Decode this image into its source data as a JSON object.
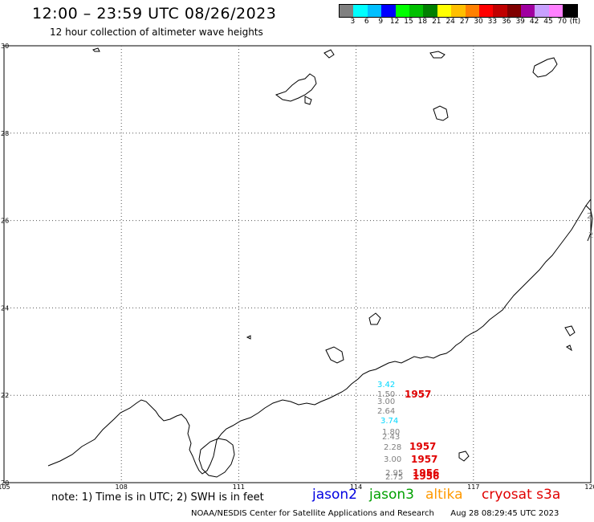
{
  "title": "12:00 – 23:59 UTC 08/26/2023",
  "subtitle": "12 hour collection of altimeter wave heights",
  "legend": {
    "unit": "(ft)",
    "colors": [
      "#808080",
      "#00ffff",
      "#00bfff",
      "#0000ff",
      "#00ff00",
      "#00c000",
      "#008000",
      "#ffff00",
      "#ffbf00",
      "#ff8000",
      "#ff0000",
      "#c00000",
      "#800000",
      "#a000a0",
      "#c8a0ff",
      "#ff80ff",
      "#000000"
    ],
    "labels": [
      "3",
      "6",
      "9",
      "12",
      "15",
      "18",
      "21",
      "24",
      "27",
      "30",
      "33",
      "36",
      "39",
      "42",
      "45",
      "70"
    ]
  },
  "axes": {
    "lat_labels": [
      "30",
      "28",
      "26",
      "24",
      "22",
      "20"
    ],
    "lon_labels": [
      "105",
      "108",
      "111",
      "114",
      "117",
      "120"
    ]
  },
  "observations": [
    {
      "value": "3.42",
      "color": "#00d8ff"
    },
    {
      "value": "1.50",
      "color": "#808080"
    },
    {
      "value": "3.00",
      "color": "#808080"
    },
    {
      "value": "2.64",
      "color": "#808080"
    },
    {
      "value": "3.74",
      "color": "#00d8ff"
    },
    {
      "value": "1.80",
      "color": "#808080"
    },
    {
      "value": "2.43",
      "color": "#808080"
    },
    {
      "value": "2.28",
      "color": "#808080"
    },
    {
      "value": "3.00",
      "color": "#808080"
    },
    {
      "value": "2.95",
      "color": "#808080"
    },
    {
      "value": "2.75",
      "color": "#808080"
    }
  ],
  "pass_times": [
    "1957",
    "1957",
    "1957",
    "1956",
    "1956"
  ],
  "edge_labels": [
    "2",
    "2"
  ],
  "footnote": "note: 1) Time is in UTC; 2) SWH is in feet",
  "satellites": [
    {
      "name": "jason2",
      "color": "#0000e0"
    },
    {
      "name": "jason3",
      "color": "#00a000"
    },
    {
      "name": "altika",
      "color": "#ff9900"
    },
    {
      "name": "cryosat s3a",
      "color": "#e00000"
    }
  ],
  "credit": "NOAA/NESDIS Center for Satellite Applications and Research",
  "timestamp": "Aug 28 08:29:45 UTC 2023"
}
